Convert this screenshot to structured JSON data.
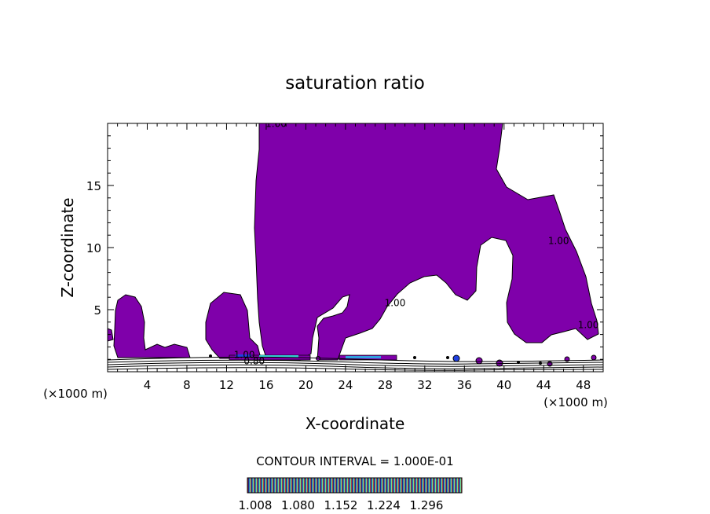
{
  "chart_data": {
    "type": "contour",
    "title": "saturation ratio",
    "xlabel": "X-coordinate",
    "ylabel": "Z-coordinate",
    "x_unit": "(×1000 m)",
    "x_unit_secondary": "(×1000 m)",
    "xlim": [
      0,
      50
    ],
    "ylim": [
      0,
      20
    ],
    "x_ticks": [
      4,
      8,
      12,
      16,
      20,
      24,
      28,
      32,
      36,
      40,
      44,
      48
    ],
    "y_ticks": [
      5,
      10,
      15
    ],
    "contour_interval_text": "CONTOUR INTERVAL = 1.000E-01",
    "contour_labels": [
      {
        "text": "1.00",
        "x": 17,
        "z": 19.7
      },
      {
        "text": "1.00",
        "x": 45.5,
        "z": 10.3
      },
      {
        "text": "1.00",
        "x": 48.5,
        "z": 3.5
      },
      {
        "text": "1.00",
        "x": 29,
        "z": 5.3
      },
      {
        "text": "1.00",
        "x": 13.8,
        "z": 1.1
      },
      {
        "text": "0.80",
        "x": 14.8,
        "z": 0.6
      }
    ],
    "colorbar": {
      "tick_labels": [
        "1.008",
        "1.080",
        "1.152",
        "1.224",
        "1.296"
      ],
      "colors": [
        "#1a1050",
        "#2030c0",
        "#20c060",
        "#a0e0a0",
        "#e02020"
      ]
    },
    "region_color": "#7f00aa"
  }
}
